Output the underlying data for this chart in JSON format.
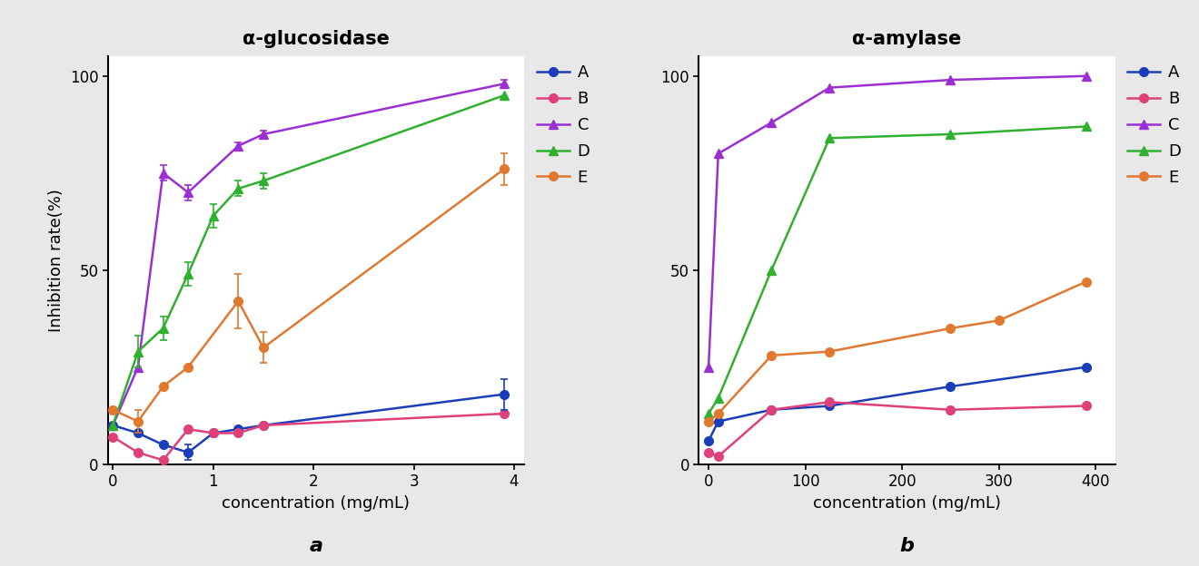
{
  "panel_a": {
    "title": "α-glucosidase",
    "xlabel": "concentration (mg/mL)",
    "ylabel": "Inhibition rate(%)",
    "label": "a",
    "series": [
      {
        "name": "A",
        "color": "#1a3eb8",
        "marker": "o",
        "x": [
          0.0,
          0.25,
          0.5,
          0.75,
          1.0,
          1.25,
          1.5,
          3.9
        ],
        "y": [
          10,
          8,
          5,
          3,
          8,
          9,
          10,
          18
        ],
        "yerr": [
          0,
          0,
          0,
          2,
          0,
          0,
          0,
          4
        ]
      },
      {
        "name": "B",
        "color": "#e0407a",
        "marker": "o",
        "x": [
          0.0,
          0.25,
          0.5,
          0.75,
          1.0,
          1.25,
          1.5,
          3.9
        ],
        "y": [
          7,
          3,
          1,
          9,
          8,
          8,
          10,
          13
        ],
        "yerr": [
          0,
          0,
          0,
          0,
          0,
          0,
          0,
          0
        ]
      },
      {
        "name": "C",
        "color": "#9b2fd4",
        "marker": "^",
        "x": [
          0.0,
          0.25,
          0.5,
          0.75,
          1.25,
          1.5,
          3.9
        ],
        "y": [
          10,
          25,
          75,
          70,
          82,
          85,
          98
        ],
        "yerr": [
          0,
          0,
          2,
          2,
          1,
          1,
          1
        ]
      },
      {
        "name": "D",
        "color": "#2fb02f",
        "marker": "^",
        "x": [
          0.0,
          0.25,
          0.5,
          0.75,
          1.0,
          1.25,
          1.5,
          3.9
        ],
        "y": [
          10,
          29,
          35,
          49,
          64,
          71,
          73,
          95
        ],
        "yerr": [
          0,
          4,
          3,
          3,
          3,
          2,
          2,
          0
        ]
      },
      {
        "name": "E",
        "color": "#e07830",
        "marker": "o",
        "x": [
          0.0,
          0.25,
          0.5,
          0.75,
          1.25,
          1.5,
          3.9
        ],
        "y": [
          14,
          11,
          20,
          25,
          42,
          30,
          76
        ],
        "yerr": [
          0,
          3,
          0,
          0,
          7,
          4,
          4
        ]
      }
    ],
    "xlim": [
      -0.05,
      4.1
    ],
    "ylim": [
      0,
      105
    ],
    "yticks": [
      0,
      50,
      100
    ],
    "xticks": [
      0,
      1,
      2,
      3,
      4
    ]
  },
  "panel_b": {
    "title": "α-amylase",
    "xlabel": "concentration (mg/mL)",
    "ylabel": "",
    "label": "b",
    "series": [
      {
        "name": "A",
        "color": "#1a3eb8",
        "marker": "o",
        "x": [
          0,
          10,
          65,
          125,
          250,
          390
        ],
        "y": [
          6,
          11,
          14,
          15,
          20,
          25
        ],
        "yerr": [
          0,
          0,
          0,
          0,
          0,
          0
        ]
      },
      {
        "name": "B",
        "color": "#e0407a",
        "marker": "o",
        "x": [
          0,
          10,
          65,
          125,
          250,
          390
        ],
        "y": [
          3,
          2,
          14,
          16,
          14,
          15
        ],
        "yerr": [
          0,
          0,
          0,
          0,
          0,
          0
        ]
      },
      {
        "name": "C",
        "color": "#9b2fd4",
        "marker": "^",
        "x": [
          0,
          10,
          65,
          125,
          250,
          390
        ],
        "y": [
          25,
          80,
          88,
          97,
          99,
          100
        ],
        "yerr": [
          0,
          0,
          0,
          0,
          0,
          0
        ]
      },
      {
        "name": "D",
        "color": "#2fb02f",
        "marker": "^",
        "x": [
          0,
          10,
          65,
          125,
          250,
          390
        ],
        "y": [
          13,
          17,
          50,
          84,
          85,
          87
        ],
        "yerr": [
          0,
          0,
          0,
          0,
          0,
          0
        ]
      },
      {
        "name": "E",
        "color": "#e07830",
        "marker": "o",
        "x": [
          0,
          10,
          65,
          125,
          250,
          300,
          390
        ],
        "y": [
          11,
          13,
          28,
          29,
          35,
          37,
          47
        ],
        "yerr": [
          0,
          0,
          0,
          0,
          0,
          0,
          0
        ]
      }
    ],
    "xlim": [
      -10,
      420
    ],
    "ylim": [
      0,
      105
    ],
    "yticks": [
      0,
      50,
      100
    ],
    "xticks": [
      0,
      100,
      200,
      300,
      400
    ]
  },
  "bg_color": "#ffffff",
  "fig_bg": "#e8e8e8",
  "title_fontsize": 15,
  "label_fontsize": 13,
  "tick_fontsize": 12,
  "legend_fontsize": 13,
  "marker_size": 7,
  "line_width": 1.8
}
